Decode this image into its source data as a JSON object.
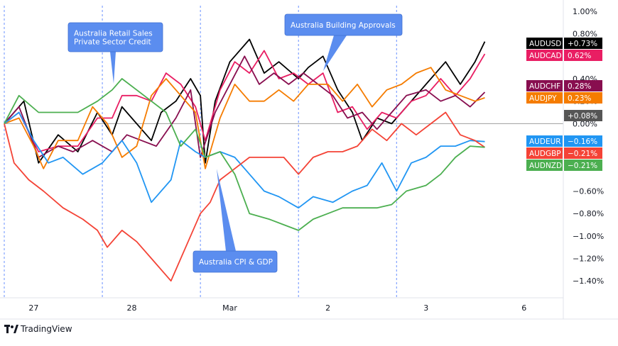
{
  "brand": {
    "name": "TradingView"
  },
  "chart_data": {
    "type": "line",
    "ylabel": "",
    "xlabel": "",
    "y_ticks": [
      1.0,
      0.8,
      0.4,
      0.2,
      0.0,
      -0.6,
      -0.8,
      -1.0,
      -1.2,
      -1.4
    ],
    "ylim": [
      -1.55,
      1.05
    ],
    "x_ticks": [
      {
        "label": "27",
        "x": 0.3
      },
      {
        "label": "28",
        "x": 1.3
      },
      {
        "label": "Mar",
        "x": 2.3
      },
      {
        "label": "2",
        "x": 3.3
      },
      {
        "label": "3",
        "x": 4.3
      },
      {
        "label": "6",
        "x": 5.3
      }
    ],
    "xlim": [
      0,
      5.7
    ],
    "grid": false,
    "session_lines": [
      0,
      1.0,
      2.0,
      3.0,
      4.0
    ],
    "baseline": 0,
    "annotations": [
      {
        "lines": [
          "Australia Retail Sales",
          "Private Sector Credit"
        ],
        "x": 1.1,
        "y": 0.42
      },
      {
        "lines": [
          "Australia Building Approvals"
        ],
        "x": 3.15,
        "y": 0.52
      },
      {
        "lines": [
          "Australia CPI & GDP"
        ],
        "x": 2.15,
        "y": -0.4
      }
    ],
    "price_badges": [
      {
        "label": "AUDUSD",
        "value": "+0.73%",
        "color": "#000000",
        "text_color": "#ffffff"
      },
      {
        "label": "AUDCAD",
        "value": "0.62%",
        "color": "#e91e63",
        "text_color": "#ffffff"
      },
      {
        "label": "AUDCHF",
        "value": "0.28%",
        "color": "#880e4f",
        "text_color": "#ffffff"
      },
      {
        "label": "AUDJPY",
        "value": "0.23%",
        "color": "#f57c00",
        "text_color": "#ffffff"
      },
      {
        "label": "",
        "value": "+0.08%",
        "color": "#555555",
        "text_color": "#ffffff"
      },
      {
        "label": "AUDEUR",
        "value": "-0.16%",
        "color": "#2196f3",
        "text_color": "#ffffff"
      },
      {
        "label": "AUDGBP",
        "value": "-0.21%",
        "color": "#f44336",
        "text_color": "#ffffff"
      },
      {
        "label": "AUDNZD",
        "value": "-0.21%",
        "color": "#4caf50",
        "text_color": "#ffffff"
      }
    ],
    "series": [
      {
        "name": "AUDUSD",
        "color": "#000000",
        "points": [
          [
            0,
            0.0
          ],
          [
            0.2,
            0.2
          ],
          [
            0.35,
            -0.35
          ],
          [
            0.55,
            -0.1
          ],
          [
            0.75,
            -0.25
          ],
          [
            0.95,
            0.1
          ],
          [
            1.1,
            -0.1
          ],
          [
            1.2,
            0.15
          ],
          [
            1.3,
            0.05
          ],
          [
            1.5,
            -0.15
          ],
          [
            1.6,
            0.1
          ],
          [
            1.75,
            0.2
          ],
          [
            1.9,
            0.4
          ],
          [
            2.0,
            0.25
          ],
          [
            2.05,
            -0.35
          ],
          [
            2.15,
            0.2
          ],
          [
            2.3,
            0.55
          ],
          [
            2.5,
            0.75
          ],
          [
            2.65,
            0.45
          ],
          [
            2.8,
            0.55
          ],
          [
            3.0,
            0.4
          ],
          [
            3.1,
            0.5
          ],
          [
            3.25,
            0.6
          ],
          [
            3.4,
            0.3
          ],
          [
            3.55,
            0.1
          ],
          [
            3.65,
            -0.15
          ],
          [
            3.8,
            0.05
          ],
          [
            3.95,
            0.0
          ],
          [
            4.1,
            0.15
          ],
          [
            4.3,
            0.35
          ],
          [
            4.5,
            0.55
          ],
          [
            4.65,
            0.35
          ],
          [
            4.8,
            0.55
          ],
          [
            4.9,
            0.73
          ]
        ]
      },
      {
        "name": "AUDCAD",
        "color": "#e91e63",
        "points": [
          [
            0,
            0.0
          ],
          [
            0.15,
            0.1
          ],
          [
            0.35,
            -0.25
          ],
          [
            0.55,
            -0.2
          ],
          [
            0.75,
            -0.2
          ],
          [
            0.95,
            0.05
          ],
          [
            1.1,
            0.05
          ],
          [
            1.2,
            0.25
          ],
          [
            1.35,
            0.25
          ],
          [
            1.5,
            0.2
          ],
          [
            1.65,
            0.45
          ],
          [
            1.8,
            0.35
          ],
          [
            1.95,
            0.15
          ],
          [
            2.05,
            -0.15
          ],
          [
            2.2,
            0.3
          ],
          [
            2.35,
            0.55
          ],
          [
            2.5,
            0.45
          ],
          [
            2.65,
            0.65
          ],
          [
            2.8,
            0.4
          ],
          [
            2.95,
            0.45
          ],
          [
            3.1,
            0.35
          ],
          [
            3.25,
            0.45
          ],
          [
            3.4,
            0.1
          ],
          [
            3.55,
            0.15
          ],
          [
            3.7,
            -0.05
          ],
          [
            3.85,
            0.1
          ],
          [
            4.0,
            0.05
          ],
          [
            4.15,
            0.2
          ],
          [
            4.3,
            0.25
          ],
          [
            4.45,
            0.4
          ],
          [
            4.6,
            0.25
          ],
          [
            4.75,
            0.4
          ],
          [
            4.9,
            0.62
          ]
        ]
      },
      {
        "name": "AUDCHF",
        "color": "#880e4f",
        "points": [
          [
            0,
            0.0
          ],
          [
            0.15,
            0.15
          ],
          [
            0.35,
            -0.3
          ],
          [
            0.55,
            -0.2
          ],
          [
            0.7,
            -0.25
          ],
          [
            0.9,
            -0.15
          ],
          [
            1.1,
            -0.25
          ],
          [
            1.25,
            -0.1
          ],
          [
            1.4,
            -0.15
          ],
          [
            1.55,
            -0.2
          ],
          [
            1.75,
            0.05
          ],
          [
            1.9,
            0.3
          ],
          [
            2.0,
            -0.3
          ],
          [
            2.15,
            0.1
          ],
          [
            2.3,
            0.35
          ],
          [
            2.45,
            0.6
          ],
          [
            2.6,
            0.35
          ],
          [
            2.75,
            0.45
          ],
          [
            2.9,
            0.35
          ],
          [
            3.05,
            0.45
          ],
          [
            3.2,
            0.35
          ],
          [
            3.35,
            0.25
          ],
          [
            3.5,
            0.05
          ],
          [
            3.65,
            0.1
          ],
          [
            3.8,
            -0.05
          ],
          [
            3.95,
            0.1
          ],
          [
            4.1,
            0.25
          ],
          [
            4.3,
            0.3
          ],
          [
            4.45,
            0.2
          ],
          [
            4.6,
            0.25
          ],
          [
            4.75,
            0.15
          ],
          [
            4.9,
            0.28
          ]
        ]
      },
      {
        "name": "AUDJPY",
        "color": "#f57c00",
        "points": [
          [
            0,
            0.0
          ],
          [
            0.15,
            0.05
          ],
          [
            0.3,
            -0.2
          ],
          [
            0.4,
            -0.4
          ],
          [
            0.55,
            -0.15
          ],
          [
            0.75,
            -0.15
          ],
          [
            0.9,
            0.15
          ],
          [
            1.05,
            0.0
          ],
          [
            1.2,
            -0.3
          ],
          [
            1.35,
            -0.2
          ],
          [
            1.5,
            0.25
          ],
          [
            1.65,
            0.4
          ],
          [
            1.8,
            0.25
          ],
          [
            1.95,
            0.1
          ],
          [
            2.05,
            -0.4
          ],
          [
            2.2,
            0.05
          ],
          [
            2.35,
            0.35
          ],
          [
            2.5,
            0.2
          ],
          [
            2.65,
            0.2
          ],
          [
            2.8,
            0.3
          ],
          [
            2.95,
            0.2
          ],
          [
            3.1,
            0.35
          ],
          [
            3.3,
            0.35
          ],
          [
            3.45,
            0.2
          ],
          [
            3.6,
            0.35
          ],
          [
            3.75,
            0.15
          ],
          [
            3.9,
            0.3
          ],
          [
            4.05,
            0.35
          ],
          [
            4.2,
            0.45
          ],
          [
            4.35,
            0.5
          ],
          [
            4.5,
            0.3
          ],
          [
            4.65,
            0.25
          ],
          [
            4.8,
            0.2
          ],
          [
            4.9,
            0.23
          ]
        ]
      },
      {
        "name": "AUDEUR",
        "color": "#2196f3",
        "points": [
          [
            0,
            0.0
          ],
          [
            0.15,
            0.1
          ],
          [
            0.3,
            -0.15
          ],
          [
            0.45,
            -0.35
          ],
          [
            0.6,
            -0.3
          ],
          [
            0.8,
            -0.45
          ],
          [
            1.0,
            -0.35
          ],
          [
            1.2,
            -0.15
          ],
          [
            1.35,
            -0.35
          ],
          [
            1.5,
            -0.7
          ],
          [
            1.7,
            -0.5
          ],
          [
            1.8,
            -0.15
          ],
          [
            1.95,
            -0.25
          ],
          [
            2.05,
            -0.3
          ],
          [
            2.2,
            -0.25
          ],
          [
            2.35,
            -0.3
          ],
          [
            2.5,
            -0.45
          ],
          [
            2.65,
            -0.6
          ],
          [
            2.8,
            -0.65
          ],
          [
            3.0,
            -0.75
          ],
          [
            3.15,
            -0.65
          ],
          [
            3.35,
            -0.7
          ],
          [
            3.55,
            -0.6
          ],
          [
            3.7,
            -0.55
          ],
          [
            3.85,
            -0.35
          ],
          [
            4.0,
            -0.6
          ],
          [
            4.15,
            -0.35
          ],
          [
            4.3,
            -0.3
          ],
          [
            4.45,
            -0.2
          ],
          [
            4.6,
            -0.2
          ],
          [
            4.75,
            -0.15
          ],
          [
            4.9,
            -0.16
          ]
        ]
      },
      {
        "name": "AUDGBP",
        "color": "#f44336",
        "points": [
          [
            0,
            0.0
          ],
          [
            0.1,
            -0.35
          ],
          [
            0.25,
            -0.5
          ],
          [
            0.4,
            -0.6
          ],
          [
            0.6,
            -0.75
          ],
          [
            0.8,
            -0.85
          ],
          [
            0.95,
            -0.95
          ],
          [
            1.05,
            -1.1
          ],
          [
            1.2,
            -0.95
          ],
          [
            1.35,
            -1.05
          ],
          [
            1.5,
            -1.2
          ],
          [
            1.7,
            -1.4
          ],
          [
            1.85,
            -1.1
          ],
          [
            2.0,
            -0.8
          ],
          [
            2.1,
            -0.7
          ],
          [
            2.2,
            -0.5
          ],
          [
            2.35,
            -0.4
          ],
          [
            2.5,
            -0.3
          ],
          [
            2.7,
            -0.3
          ],
          [
            2.85,
            -0.3
          ],
          [
            3.0,
            -0.45
          ],
          [
            3.15,
            -0.3
          ],
          [
            3.3,
            -0.25
          ],
          [
            3.45,
            -0.25
          ],
          [
            3.6,
            -0.2
          ],
          [
            3.75,
            -0.05
          ],
          [
            3.9,
            -0.15
          ],
          [
            4.05,
            0.0
          ],
          [
            4.2,
            -0.1
          ],
          [
            4.35,
            0.0
          ],
          [
            4.5,
            0.1
          ],
          [
            4.65,
            -0.1
          ],
          [
            4.8,
            -0.15
          ],
          [
            4.9,
            -0.21
          ]
        ]
      },
      {
        "name": "AUDNZD",
        "color": "#4caf50",
        "points": [
          [
            0,
            0.0
          ],
          [
            0.15,
            0.25
          ],
          [
            0.35,
            0.1
          ],
          [
            0.55,
            0.1
          ],
          [
            0.75,
            0.1
          ],
          [
            0.95,
            0.2
          ],
          [
            1.1,
            0.3
          ],
          [
            1.2,
            0.4
          ],
          [
            1.35,
            0.3
          ],
          [
            1.5,
            0.2
          ],
          [
            1.65,
            0.1
          ],
          [
            1.8,
            -0.2
          ],
          [
            1.95,
            -0.05
          ],
          [
            2.05,
            -0.3
          ],
          [
            2.2,
            -0.25
          ],
          [
            2.35,
            -0.45
          ],
          [
            2.5,
            -0.8
          ],
          [
            2.7,
            -0.85
          ],
          [
            2.85,
            -0.9
          ],
          [
            3.0,
            -0.95
          ],
          [
            3.15,
            -0.85
          ],
          [
            3.3,
            -0.8
          ],
          [
            3.45,
            -0.75
          ],
          [
            3.6,
            -0.75
          ],
          [
            3.8,
            -0.75
          ],
          [
            3.95,
            -0.72
          ],
          [
            4.1,
            -0.6
          ],
          [
            4.3,
            -0.55
          ],
          [
            4.45,
            -0.45
          ],
          [
            4.6,
            -0.3
          ],
          [
            4.75,
            -0.2
          ],
          [
            4.9,
            -0.21
          ]
        ]
      }
    ]
  }
}
